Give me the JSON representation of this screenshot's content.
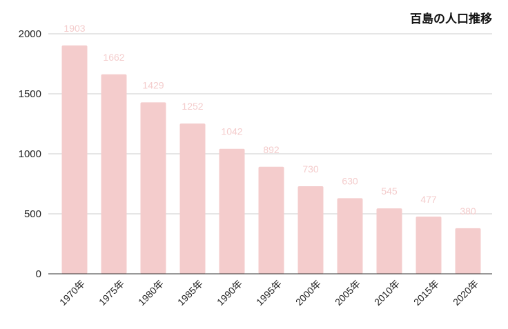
{
  "chart_data": {
    "type": "bar",
    "title": "百島の人口推移",
    "xlabel": "",
    "ylabel": "",
    "categories": [
      "1970年",
      "1975年",
      "1980年",
      "1985年",
      "1990年",
      "1995年",
      "2000年",
      "2005年",
      "2010年",
      "2015年",
      "2020年"
    ],
    "values": [
      1903,
      1662,
      1429,
      1252,
      1042,
      892,
      730,
      630,
      545,
      477,
      380
    ],
    "ylim": [
      0,
      2000
    ],
    "yticks": [
      0,
      500,
      1000,
      1500,
      2000
    ],
    "grid": true,
    "legend": "none",
    "bar_color": "#f4cccc",
    "label_color": "#f4cccc"
  }
}
